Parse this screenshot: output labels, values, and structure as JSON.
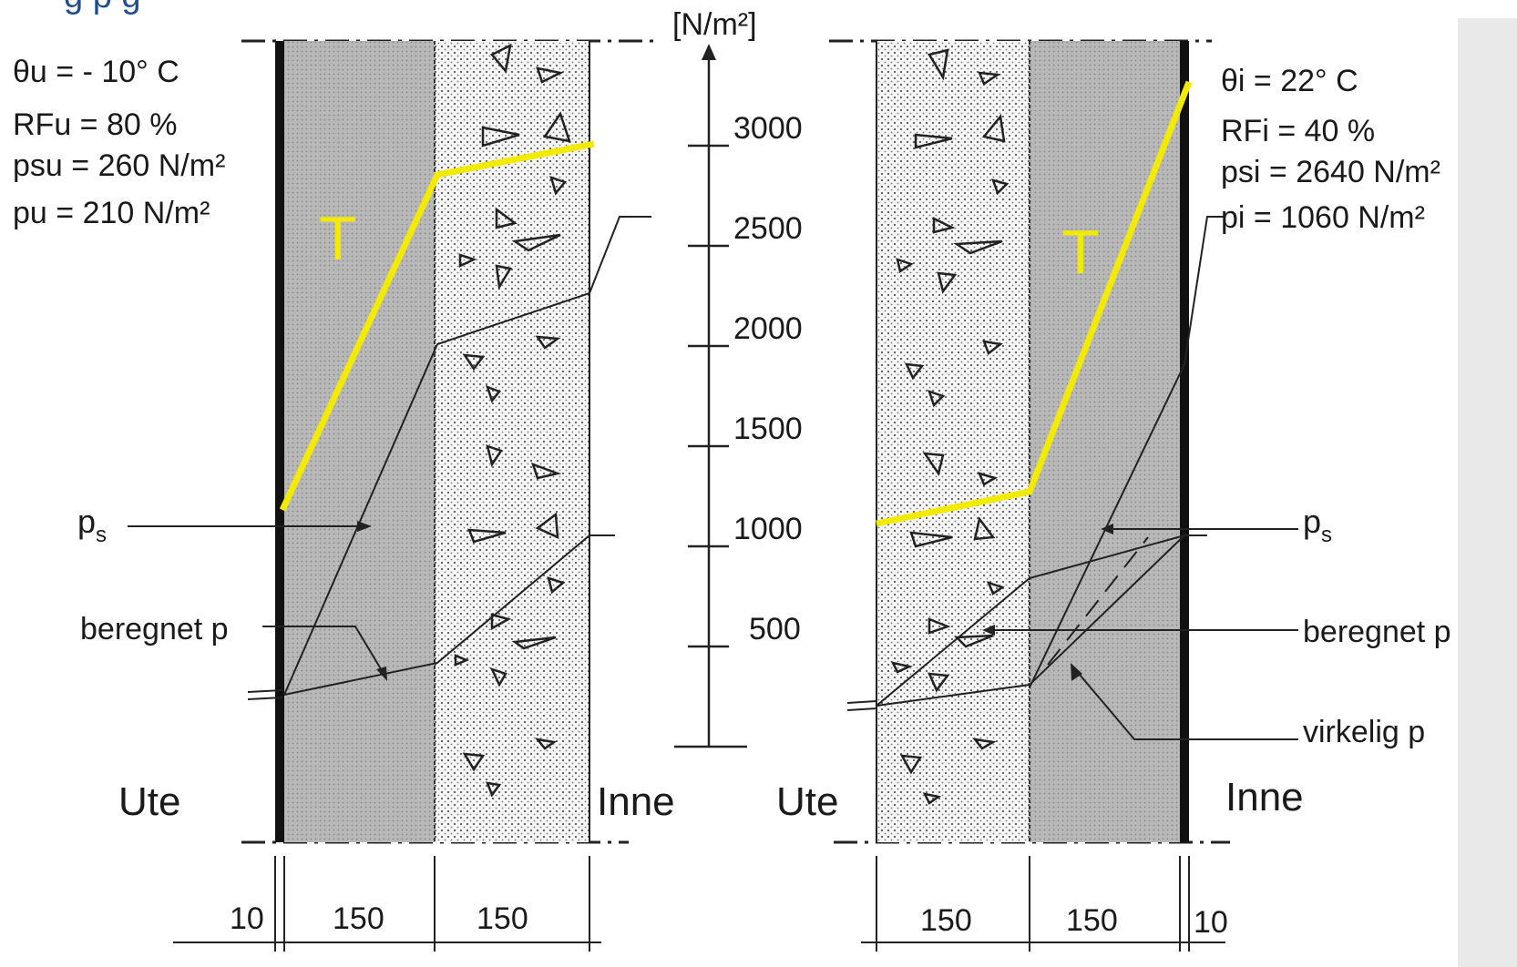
{
  "header_fragment": "g p g",
  "axis": {
    "unit_label": "[N/m²]",
    "ticks": [
      "3000",
      "2500",
      "2000",
      "1500",
      "1000",
      "500"
    ]
  },
  "left_panel": {
    "conditions": [
      "θu  = - 10° C",
      "RFu = 80 %",
      "psu = 260 N/m²",
      "pu = 210 N/m²"
    ],
    "temp_label": "T",
    "ps_label": "ps",
    "p_label": "beregnet p",
    "side_out": "Ute",
    "side_in": "Inne",
    "dims": [
      "10",
      "150",
      "150"
    ]
  },
  "right_panel": {
    "conditions": [
      "θi  =  22° C",
      "RFi = 40 %",
      "psi = 2640 N/m²",
      "pi = 1060 N/m²"
    ],
    "temp_label": "T",
    "ps_label": "ps",
    "p_label": "beregnet p",
    "real_p_label": "virkelig p",
    "side_out": "Ute",
    "side_in": "Inne",
    "dims": [
      "150",
      "150",
      "10"
    ]
  },
  "colors": {
    "temperature_line": "#f2ea00",
    "insulation_fill": "#bdbdbd",
    "concrete_fill": "#efefef",
    "header_text": "#1f4e8c"
  }
}
